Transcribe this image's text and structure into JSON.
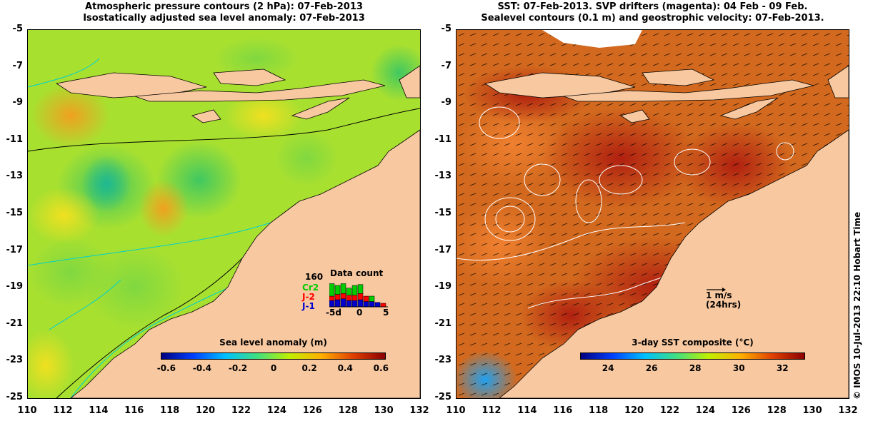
{
  "left_panel": {
    "title_line1": "Atmospheric pressure contours (2 hPa): 07-Feb-2013",
    "title_line2": "Isostatically adjusted sea level anomaly: 07-Feb-2013",
    "colorbar_label": "Sea level anomaly (m)",
    "colorbar_ticks": [
      "-0.6",
      "-0.4",
      "-0.2",
      "0",
      "0.2",
      "0.4",
      "0.6"
    ],
    "colorbar_colors": [
      "#00007f",
      "#0040ff",
      "#00c0ff",
      "#40e080",
      "#c0f000",
      "#ffb000",
      "#e04000",
      "#8b0000"
    ],
    "data_count": {
      "title": "Data count",
      "max_label": "160",
      "series": [
        {
          "label": "Cr2",
          "color": "#00cc00"
        },
        {
          "label": "J-2",
          "color": "#ff0000"
        },
        {
          "label": "J-1",
          "color": "#0000cc"
        }
      ],
      "axis_ticks": [
        "-5d",
        "0",
        "5"
      ],
      "bars": [
        {
          "day": -5,
          "j1": 35,
          "j2": 25,
          "cr2": 70
        },
        {
          "day": -4,
          "j1": 40,
          "j2": 30,
          "cr2": 50
        },
        {
          "day": -3,
          "j1": 45,
          "j2": 30,
          "cr2": 55
        },
        {
          "day": -2,
          "j1": 35,
          "j2": 30,
          "cr2": 40
        },
        {
          "day": -1,
          "j1": 35,
          "j2": 30,
          "cr2": 55
        },
        {
          "day": 0,
          "j1": 40,
          "j2": 35,
          "cr2": 50
        },
        {
          "day": 1,
          "j1": 30,
          "j2": 30,
          "cr2": 0
        },
        {
          "day": 2,
          "j1": 30,
          "j2": 0,
          "cr2": 30
        },
        {
          "day": 3,
          "j1": 25,
          "j2": 0,
          "cr2": 0
        },
        {
          "day": 4,
          "j1": 0,
          "j2": 20,
          "cr2": 0
        }
      ]
    }
  },
  "right_panel": {
    "title_line1": "SST: 07-Feb-2013. SVP drifters (magenta): 04 Feb - 09 Feb.",
    "title_line2": "Sealevel contours (0.1 m) and geostrophic velocity: 07-Feb-2013.",
    "colorbar_label": "3-day SST composite (°C)",
    "colorbar_ticks": [
      "24",
      "26",
      "28",
      "30",
      "32"
    ],
    "colorbar_colors": [
      "#00007f",
      "#0040ff",
      "#00c0ff",
      "#40e080",
      "#c0f000",
      "#ffb000",
      "#e04000",
      "#8b0000"
    ],
    "velocity_scale_label": "1 m/s",
    "velocity_scale_sub": "(24hrs)"
  },
  "axes": {
    "lon_ticks": [
      "110",
      "112",
      "114",
      "116",
      "118",
      "120",
      "122",
      "124",
      "126",
      "128",
      "130",
      "132"
    ],
    "lat_ticks": [
      "-5",
      "-7",
      "-9",
      "-11",
      "-13",
      "-15",
      "-17",
      "-19",
      "-21",
      "-23",
      "-25"
    ]
  },
  "credit": "© IMOS 10-Jul-2013 22:10 Hobart Time",
  "colors": {
    "land": "#f8c8a0",
    "sla_field": "#b8e830",
    "sst_field": "#d2691e"
  }
}
